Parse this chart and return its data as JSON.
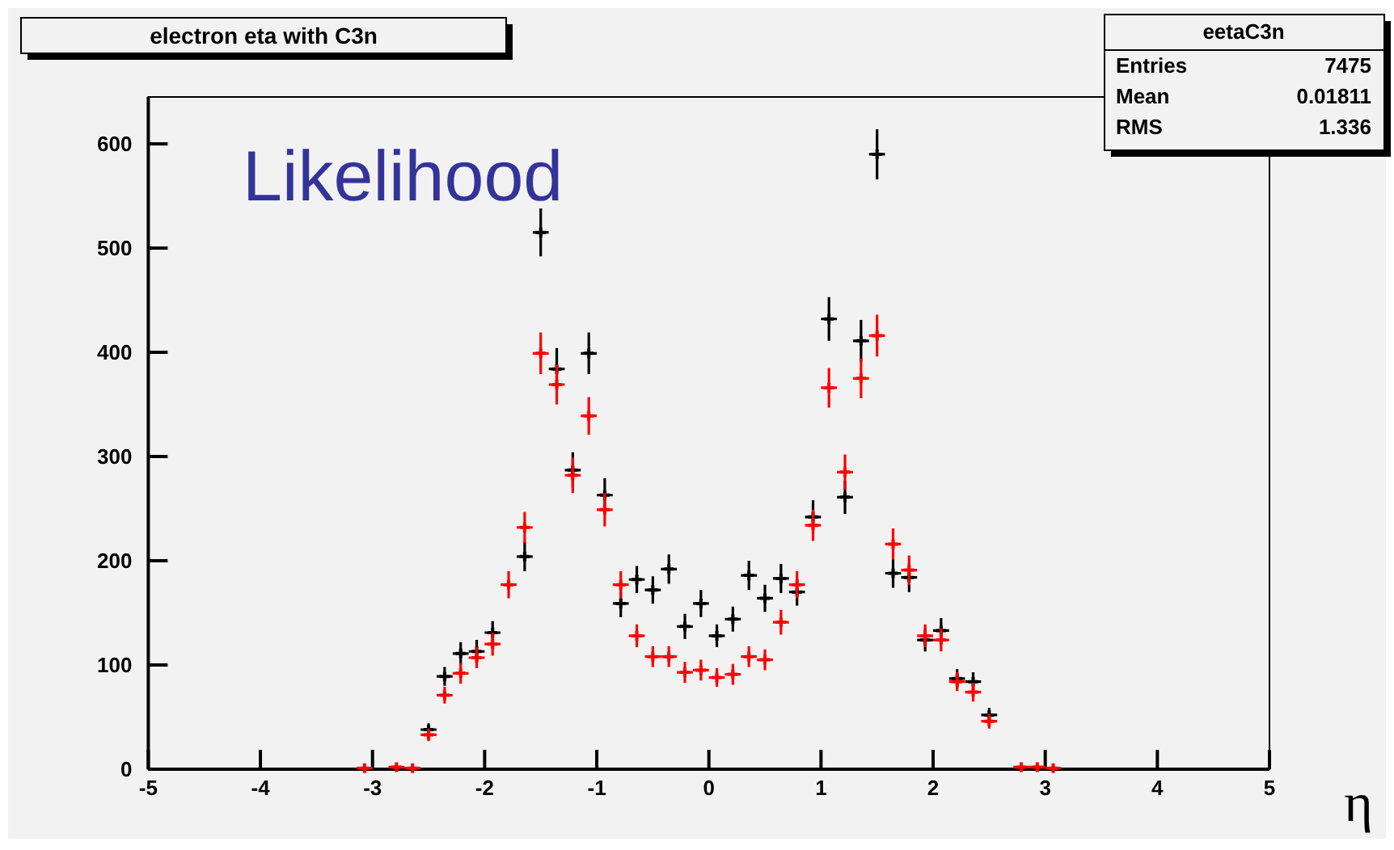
{
  "chart_data": {
    "type": "scatter",
    "title": "electron eta with C3n",
    "xlabel": "η",
    "annotations": [
      "Likelihood",
      "eetaC3n",
      "Entries",
      "7475",
      "Mean",
      "0.01811",
      "RMS",
      "1.336"
    ],
    "xlim": [
      -5,
      5
    ],
    "xticks": [
      -5,
      -4,
      -3,
      -2,
      -1,
      0,
      1,
      2,
      3,
      4,
      5
    ],
    "ylim": [
      0,
      645
    ],
    "yticks": [
      0,
      100,
      200,
      300,
      400,
      500,
      600
    ],
    "grid": false,
    "marker": "cross",
    "series": [
      {
        "color": "#000000",
        "x": [
          -2.5,
          -2.357,
          -2.214,
          -2.071,
          -1.929,
          -1.643,
          -1.5,
          -1.357,
          -1.214,
          -1.071,
          -0.929,
          -0.786,
          -0.643,
          -0.5,
          -0.357,
          -0.214,
          -0.071,
          0.071,
          0.214,
          0.357,
          0.5,
          0.643,
          0.786,
          0.929,
          1.071,
          1.214,
          1.357,
          1.5,
          1.643,
          1.786,
          1.929,
          2.071,
          2.214,
          2.357,
          2.5
        ],
        "values": [
          38,
          89,
          111,
          113,
          131,
          204,
          515,
          384,
          287,
          399,
          263,
          159,
          182,
          172,
          192,
          137,
          159,
          128,
          144,
          186,
          164,
          183,
          170,
          242,
          432,
          261,
          411,
          590,
          188,
          184,
          124,
          133,
          87,
          84,
          52
        ],
        "errors": [
          6,
          9,
          11,
          11,
          11,
          14,
          23,
          20,
          17,
          20,
          16,
          13,
          13,
          13,
          14,
          12,
          13,
          11,
          12,
          14,
          13,
          14,
          13,
          16,
          21,
          16,
          20,
          24,
          14,
          14,
          11,
          12,
          9,
          9,
          7
        ],
        "xerrors": [
          0.071,
          0.071,
          0.071,
          0.071,
          0.071,
          0.071,
          0.071,
          0.071,
          0.071,
          0.071,
          0.071,
          0.071,
          0.071,
          0.071,
          0.071,
          0.071,
          0.071,
          0.071,
          0.071,
          0.071,
          0.071,
          0.071,
          0.071,
          0.071,
          0.071,
          0.071,
          0.071,
          0.071,
          0.071,
          0.071,
          0.071,
          0.071,
          0.071,
          0.071,
          0.071
        ]
      },
      {
        "color": "#ff0000",
        "x": [
          -3.071,
          -2.786,
          -2.643,
          -2.5,
          -2.357,
          -2.214,
          -2.071,
          -1.929,
          -1.786,
          -1.643,
          -1.5,
          -1.357,
          -1.214,
          -1.071,
          -0.929,
          -0.786,
          -0.643,
          -0.5,
          -0.357,
          -0.214,
          -0.071,
          0.071,
          0.214,
          0.357,
          0.5,
          0.643,
          0.786,
          0.929,
          1.071,
          1.214,
          1.357,
          1.5,
          1.643,
          1.786,
          1.929,
          2.071,
          2.214,
          2.357,
          2.5,
          2.786,
          2.929,
          3.071
        ],
        "values": [
          1,
          2,
          1,
          33,
          71,
          92,
          107,
          120,
          177,
          232,
          399,
          369,
          282,
          339,
          249,
          177,
          128,
          108,
          108,
          93,
          95,
          88,
          91,
          108,
          105,
          141,
          177,
          234,
          366,
          285,
          375,
          416,
          216,
          191,
          128,
          124,
          84,
          74,
          46,
          2,
          2,
          1
        ],
        "errors": [
          1,
          1,
          1,
          6,
          8,
          10,
          10,
          11,
          13,
          15,
          20,
          19,
          17,
          18,
          16,
          13,
          11,
          10,
          10,
          10,
          10,
          9,
          10,
          10,
          10,
          12,
          13,
          15,
          19,
          17,
          19,
          20,
          15,
          14,
          11,
          11,
          9,
          9,
          7,
          1,
          1,
          1
        ],
        "xerrors": [
          0.071,
          0.071,
          0.071,
          0.071,
          0.071,
          0.071,
          0.071,
          0.071,
          0.071,
          0.071,
          0.071,
          0.071,
          0.071,
          0.071,
          0.071,
          0.071,
          0.071,
          0.071,
          0.071,
          0.071,
          0.071,
          0.071,
          0.071,
          0.071,
          0.071,
          0.071,
          0.071,
          0.071,
          0.071,
          0.071,
          0.071,
          0.071,
          0.071,
          0.071,
          0.071,
          0.071,
          0.071,
          0.071,
          0.071,
          0.071,
          0.071,
          0.071
        ]
      }
    ]
  }
}
